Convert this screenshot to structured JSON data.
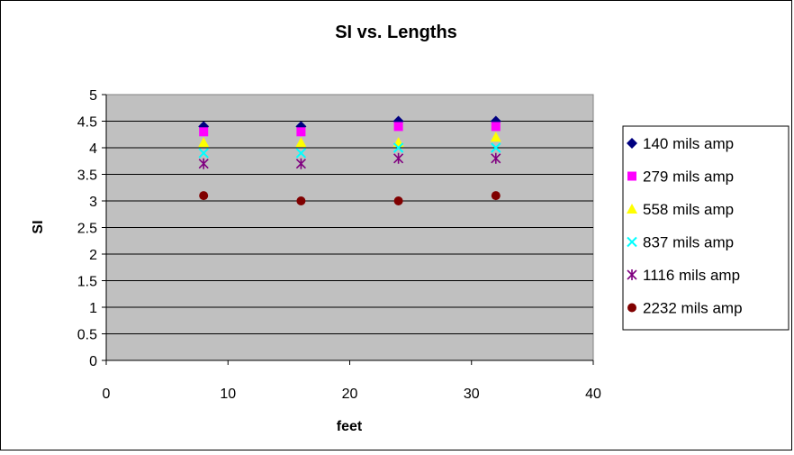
{
  "chart_data": {
    "type": "scatter",
    "title": "SI vs. Lengths",
    "xlabel": "feet",
    "ylabel": "SI",
    "xlim": [
      0,
      40
    ],
    "ylim": [
      0,
      5
    ],
    "xticks": [
      0,
      10,
      20,
      30,
      40
    ],
    "yticks": [
      0,
      0.5,
      1,
      1.5,
      2,
      2.5,
      3,
      3.5,
      4,
      4.5,
      5
    ],
    "grid": "horizontal",
    "plot_background": "#c0c0c0",
    "legend_position": "right",
    "series": [
      {
        "name": "140 mils amp",
        "marker": "diamond",
        "color": "#000080",
        "x": [
          8,
          16,
          24,
          32
        ],
        "y": [
          4.4,
          4.4,
          4.5,
          4.5
        ]
      },
      {
        "name": "279 mils amp",
        "marker": "square",
        "color": "#ff00ff",
        "x": [
          8,
          16,
          24,
          32
        ],
        "y": [
          4.3,
          4.3,
          4.4,
          4.4
        ]
      },
      {
        "name": "558 mils amp",
        "marker": "triangle",
        "color": "#ffff00",
        "x": [
          8,
          16,
          24,
          32
        ],
        "y": [
          4.1,
          4.1,
          4.1,
          4.2
        ]
      },
      {
        "name": "837 mils amp",
        "marker": "x",
        "color": "#00ffff",
        "x": [
          8,
          16,
          24,
          32
        ],
        "y": [
          3.9,
          3.9,
          4.0,
          4.0
        ]
      },
      {
        "name": "1116 mils amp",
        "marker": "star",
        "color": "#800080",
        "x": [
          8,
          16,
          24,
          32
        ],
        "y": [
          3.7,
          3.7,
          3.8,
          3.8
        ]
      },
      {
        "name": "2232 mils amp",
        "marker": "circle",
        "color": "#800000",
        "x": [
          8,
          16,
          24,
          32
        ],
        "y": [
          3.1,
          3.0,
          3.0,
          3.1
        ]
      }
    ]
  }
}
